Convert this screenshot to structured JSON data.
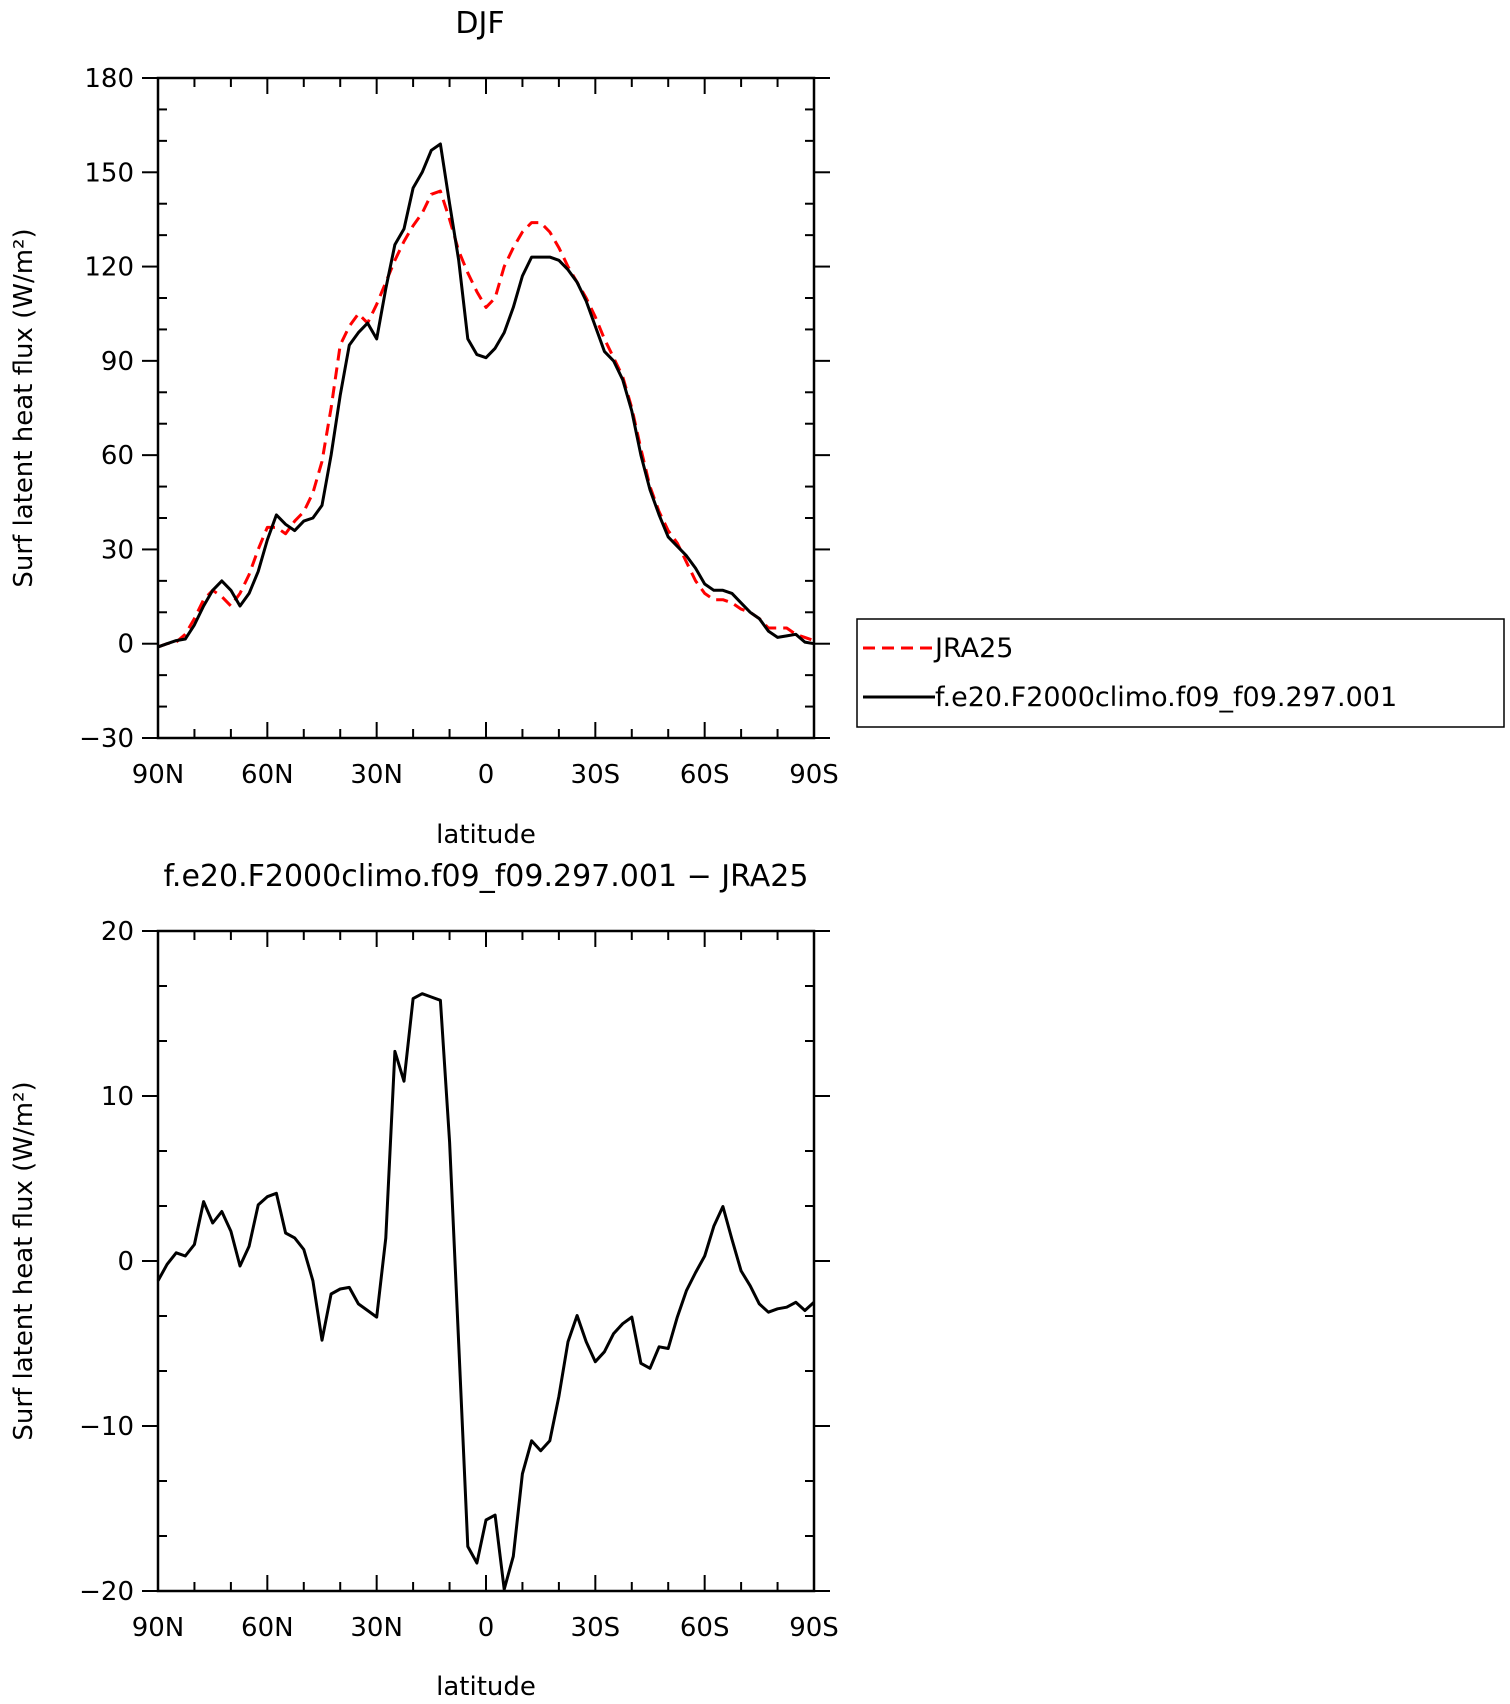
{
  "chart_data": [
    {
      "type": "line",
      "title": "DJF",
      "xlabel": "latitude",
      "ylabel": "Surf latent heat flux (W/m²)",
      "xlim": [
        -90,
        90
      ],
      "ylim": [
        -30,
        180
      ],
      "x_ticks": [
        -90,
        -60,
        -30,
        0,
        30,
        60,
        90
      ],
      "x_tick_labels": [
        "90N",
        "60N",
        "30N",
        "0",
        "30S",
        "60S",
        "90S"
      ],
      "y_ticks": [
        -30,
        0,
        30,
        60,
        90,
        120,
        150,
        180
      ],
      "y_tick_labels": [
        "−30",
        "0",
        "30",
        "60",
        "90",
        "120",
        "150",
        "180"
      ],
      "legend": {
        "placement": "outside-right"
      },
      "series": [
        {
          "name": "JRA25",
          "color": "#ff0000",
          "dash": "dashed",
          "x": [
            -90,
            -87.5,
            -85,
            -82.5,
            -80,
            -77.5,
            -75,
            -72.5,
            -70,
            -67.5,
            -65,
            -62.5,
            -60,
            -57.5,
            -55,
            -52.5,
            -50,
            -47.5,
            -45,
            -42.5,
            -40,
            -37.5,
            -35,
            -32.5,
            -30,
            -27.5,
            -25,
            -22.5,
            -20,
            -17.5,
            -15,
            -12.5,
            -10,
            -7.5,
            -5,
            -2.5,
            0,
            2.5,
            5,
            7.5,
            10,
            12.5,
            15,
            17.5,
            20,
            22.5,
            25,
            27.5,
            30,
            32.5,
            35,
            37.5,
            40,
            42.5,
            45,
            47.5,
            50,
            52.5,
            55,
            57.5,
            60,
            62.5,
            65,
            67.5,
            70,
            72.5,
            75,
            77.5,
            80,
            82.5,
            85,
            87.5,
            90
          ],
          "values": [
            -1,
            0,
            0.5,
            3,
            8,
            14,
            17,
            15,
            12,
            16,
            22,
            30,
            37,
            37,
            35,
            39,
            42,
            48,
            58,
            75,
            95,
            101,
            105,
            102,
            108,
            115,
            122,
            128,
            133,
            137,
            143,
            144,
            135,
            125,
            118,
            112,
            107,
            110,
            120,
            126,
            131,
            134,
            134,
            131,
            126,
            120,
            115,
            110,
            104,
            97,
            91,
            85,
            75,
            62,
            50,
            42,
            36,
            32,
            26,
            20,
            16,
            14,
            14,
            13,
            11,
            10,
            8,
            5,
            5,
            5,
            3,
            2,
            1
          ]
        },
        {
          "name": "f.e20.F2000climo.f09_f09.297.001",
          "color": "#000000",
          "dash": "solid",
          "x": [
            -90,
            -87.5,
            -85,
            -82.5,
            -80,
            -77.5,
            -75,
            -72.5,
            -70,
            -67.5,
            -65,
            -62.5,
            -60,
            -57.5,
            -55,
            -52.5,
            -50,
            -47.5,
            -45,
            -42.5,
            -40,
            -37.5,
            -35,
            -32.5,
            -30,
            -27.5,
            -25,
            -22.5,
            -20,
            -17.5,
            -15,
            -12.5,
            -10,
            -7.5,
            -5,
            -2.5,
            0,
            2.5,
            5,
            7.5,
            10,
            12.5,
            15,
            17.5,
            20,
            22.5,
            25,
            27.5,
            30,
            32.5,
            35,
            37.5,
            40,
            42.5,
            45,
            47.5,
            50,
            52.5,
            55,
            57.5,
            60,
            62.5,
            65,
            67.5,
            70,
            72.5,
            75,
            77.5,
            80,
            82.5,
            85,
            87.5,
            90
          ],
          "values": [
            -1,
            0,
            1,
            1.5,
            6,
            12,
            17,
            20,
            17,
            12,
            16,
            23,
            33,
            41,
            38,
            36,
            39,
            40,
            44,
            60,
            79,
            95,
            99,
            102,
            97,
            113,
            127,
            132,
            145,
            150,
            157,
            159,
            140,
            122,
            97,
            92,
            91,
            94,
            99,
            107,
            117,
            123,
            123,
            123,
            122,
            119,
            115,
            109,
            101,
            93,
            90,
            84,
            74,
            60,
            49,
            41,
            34,
            31,
            28,
            24,
            19,
            17,
            17,
            16,
            13,
            10,
            8,
            4,
            2,
            2.5,
            3,
            0.5,
            0
          ]
        }
      ]
    },
    {
      "type": "line",
      "title": "f.e20.F2000climo.f09_f09.297.001 − JRA25",
      "xlabel": "latitude",
      "ylabel": "Surf latent heat flux (W/m²)",
      "xlim": [
        -90,
        90
      ],
      "ylim": [
        -20,
        20
      ],
      "x_ticks": [
        -90,
        -60,
        -30,
        0,
        30,
        60,
        90
      ],
      "x_tick_labels": [
        "90N",
        "60N",
        "30N",
        "0",
        "30S",
        "60S",
        "90S"
      ],
      "y_ticks": [
        -20,
        -10,
        0,
        10,
        20
      ],
      "y_tick_labels": [
        "−20",
        "−10",
        "0",
        "10",
        "20"
      ],
      "series": [
        {
          "color": "#000000",
          "dash": "solid",
          "x": [
            -90,
            -87.5,
            -85,
            -82.5,
            -80,
            -77.5,
            -75,
            -72.5,
            -70,
            -67.5,
            -65,
            -62.5,
            -60,
            -57.5,
            -55,
            -52.5,
            -50,
            -47.5,
            -45,
            -42.5,
            -40,
            -37.5,
            -35,
            -32.5,
            -30,
            -27.5,
            -25,
            -22.5,
            -20,
            -17.5,
            -15,
            -12.5,
            -10,
            -7.5,
            -5,
            -2.5,
            0,
            2.5,
            5,
            7.5,
            10,
            12.5,
            15,
            17.5,
            20,
            22.5,
            25,
            27.5,
            30,
            32.5,
            35,
            37.5,
            40,
            42.5,
            45,
            47.5,
            50,
            52.5,
            55,
            57.5,
            60,
            62.5,
            65,
            67.5,
            70,
            72.5,
            75,
            77.5,
            80,
            82.5,
            85,
            87.5,
            90
          ],
          "values": [
            -1.2,
            -0.2,
            0.5,
            0.3,
            1,
            3.6,
            2.3,
            3,
            1.8,
            -0.3,
            0.9,
            3.4,
            3.9,
            4.1,
            1.7,
            1.4,
            0.7,
            -1.2,
            -4.8,
            -2,
            -1.7,
            -1.6,
            -2.6,
            -3,
            -3.4,
            1.4,
            12.7,
            10.9,
            15.9,
            16.2,
            16,
            15.8,
            7.2,
            -5,
            -17.3,
            -18.3,
            -15.7,
            -15.4,
            -19.9,
            -17.9,
            -12.9,
            -10.9,
            -11.5,
            -10.9,
            -8.2,
            -4.9,
            -3.3,
            -4.9,
            -6.1,
            -5.5,
            -4.4,
            -3.8,
            -3.4,
            -6.2,
            -6.5,
            -5.2,
            -5.3,
            -3.4,
            -1.8,
            -0.7,
            0.3,
            2.1,
            3.3,
            1.3,
            -0.6,
            -1.5,
            -2.6,
            -3.1,
            -2.9,
            -2.8,
            -2.5,
            -3,
            -2.5
          ]
        }
      ]
    }
  ]
}
